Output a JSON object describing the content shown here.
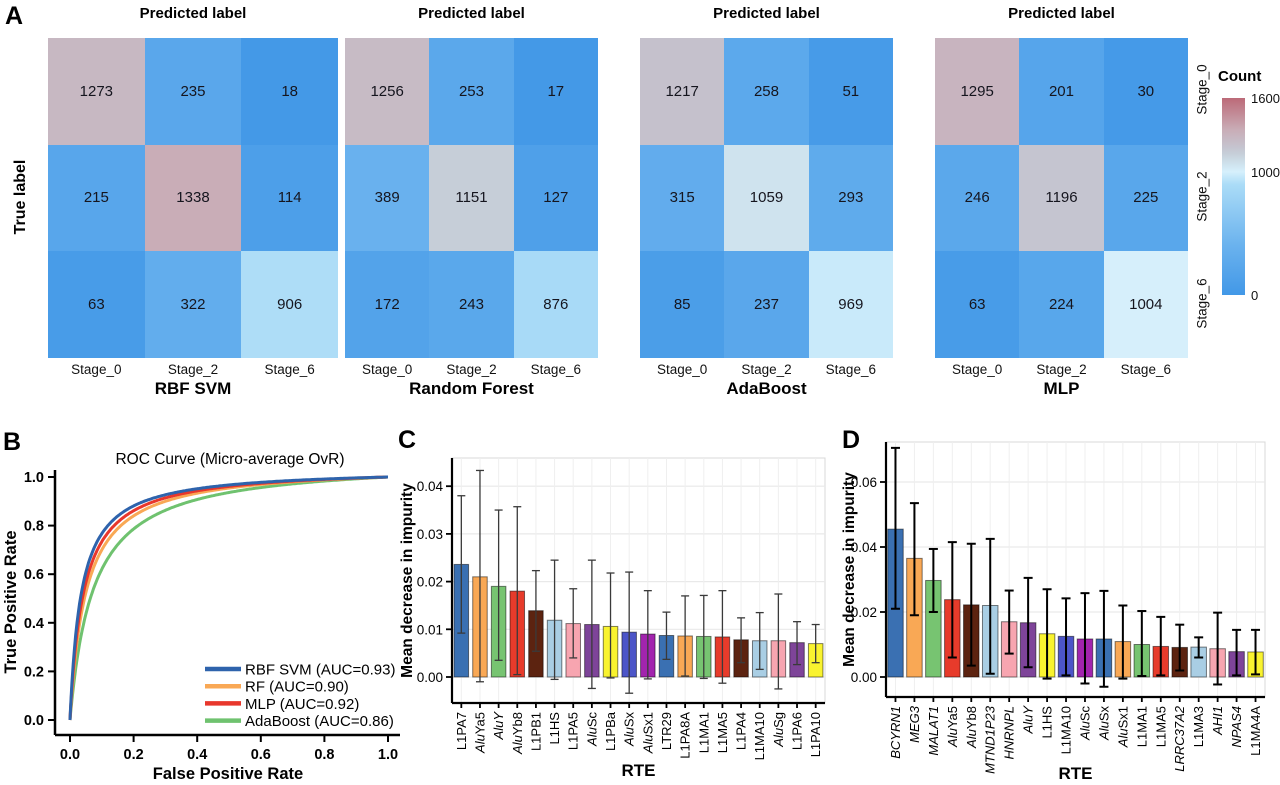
{
  "panels": {
    "A": {
      "label": "A"
    },
    "B": {
      "label": "B"
    },
    "C": {
      "label": "C"
    },
    "D": {
      "label": "D"
    }
  },
  "palette": [
    "#3A70B2",
    "#F9A855",
    "#77C471",
    "#E73B2B",
    "#5C2310",
    "#A9CEE4",
    "#F7A5B0",
    "#7E4499",
    "#F9F32F",
    "#4C55C8",
    "#A224AE"
  ],
  "chart_data": [
    {
      "panel": "A",
      "type": "heatmap",
      "title_each": "Predicted label",
      "ylabel": "True label",
      "row_labels": [
        "Stage_0",
        "Stage_2",
        "Stage_6"
      ],
      "col_labels": [
        "Stage_0",
        "Stage_2",
        "Stage_6"
      ],
      "colorbar": {
        "title": "Count",
        "min": 0,
        "max": 1600,
        "ticks": [
          1600,
          1000,
          0
        ],
        "stops": [
          {
            "count": 0,
            "color": "#4298E7"
          },
          {
            "count": 400,
            "color": "#6AB2EE"
          },
          {
            "count": 900,
            "color": "#ABDCF7"
          },
          {
            "count": 1000,
            "color": "#D6F0FC"
          },
          {
            "count": 1060,
            "color": "#CFE3EE"
          },
          {
            "count": 1150,
            "color": "#C6CED8"
          },
          {
            "count": 1200,
            "color": "#C5C4CF"
          },
          {
            "count": 1340,
            "color": "#C9ADB7"
          },
          {
            "count": 1600,
            "color": "#BC6A78"
          }
        ]
      },
      "matrices": [
        {
          "name": "RBF SVM",
          "values": [
            [
              1273,
              235,
              18
            ],
            [
              215,
              1338,
              114
            ],
            [
              63,
              322,
              906
            ]
          ]
        },
        {
          "name": "Random Forest",
          "values": [
            [
              1256,
              253,
              17
            ],
            [
              389,
              1151,
              127
            ],
            [
              172,
              243,
              876
            ]
          ]
        },
        {
          "name": "AdaBoost",
          "values": [
            [
              1217,
              258,
              51
            ],
            [
              315,
              1059,
              293
            ],
            [
              85,
              237,
              969
            ]
          ]
        },
        {
          "name": "MLP",
          "values": [
            [
              1295,
              201,
              30
            ],
            [
              246,
              1196,
              225
            ],
            [
              63,
              224,
              1004
            ]
          ]
        }
      ]
    },
    {
      "panel": "B",
      "type": "line",
      "title": "ROC Curve (Micro-average OvR)",
      "xlabel": "False Positive Rate",
      "ylabel": "True Positive Rate",
      "xticks": [
        0.0,
        0.2,
        0.4,
        0.6,
        0.8,
        1.0
      ],
      "yticks": [
        0.0,
        0.2,
        0.4,
        0.6,
        0.8,
        1.0
      ],
      "xlim": [
        0,
        1
      ],
      "ylim": [
        0,
        1
      ],
      "grid": false,
      "legend_position": "lower right",
      "series": [
        {
          "name": "RBF SVM (AUC=0.93)",
          "auc": 0.93,
          "color": "#2E63AC",
          "shape_k": 0.035
        },
        {
          "name": "RF (AUC=0.90)",
          "auc": 0.9,
          "color": "#F9A855",
          "shape_k": 0.05
        },
        {
          "name": "MLP (AUC=0.92)",
          "auc": 0.92,
          "color": "#E8372C",
          "shape_k": 0.042
        },
        {
          "name": "AdaBoost (AUC=0.86)",
          "auc": 0.86,
          "color": "#6FC26F",
          "shape_k": 0.073
        }
      ]
    },
    {
      "panel": "C",
      "type": "bar",
      "xlabel": "RTE",
      "ylabel": "Mean decrease in impurity",
      "yticks": [
        0.0,
        0.01,
        0.02,
        0.03,
        0.04
      ],
      "ylim": [
        -0.0054,
        0.0452
      ],
      "grid": true,
      "error_color": "#3a3a3a",
      "bars": [
        {
          "label": "L1PA7",
          "value": 0.0236,
          "err_lo": 0.0092,
          "err_hi": 0.038,
          "italic": "none"
        },
        {
          "label": "AluYa5",
          "value": 0.021,
          "err_lo": -0.001,
          "err_hi": 0.0433,
          "italic": "prefix"
        },
        {
          "label": "AluY",
          "value": 0.019,
          "err_lo": 0.0035,
          "err_hi": 0.035,
          "italic": "full"
        },
        {
          "label": "AluYb8",
          "value": 0.018,
          "err_lo": 0.0005,
          "err_hi": 0.0357,
          "italic": "prefix"
        },
        {
          "label": "L1PB1",
          "value": 0.0139,
          "err_lo": 0.0054,
          "err_hi": 0.0223,
          "italic": "none"
        },
        {
          "label": "L1HS",
          "value": 0.0119,
          "err_lo": -0.0005,
          "err_hi": 0.0245,
          "italic": "none"
        },
        {
          "label": "L1PA5",
          "value": 0.0112,
          "err_lo": 0.004,
          "err_hi": 0.0185,
          "italic": "none"
        },
        {
          "label": "AluSc",
          "value": 0.011,
          "err_lo": -0.0024,
          "err_hi": 0.0245,
          "italic": "prefix"
        },
        {
          "label": "L1PBa",
          "value": 0.0106,
          "err_lo": -0.0002,
          "err_hi": 0.0218,
          "italic": "none"
        },
        {
          "label": "AluSx",
          "value": 0.0094,
          "err_lo": -0.0034,
          "err_hi": 0.022,
          "italic": "prefix"
        },
        {
          "label": "AluSx1",
          "value": 0.009,
          "err_lo": -0.0004,
          "err_hi": 0.0181,
          "italic": "prefix"
        },
        {
          "label": "LTR29",
          "value": 0.0087,
          "err_lo": 0.0037,
          "err_hi": 0.0136,
          "italic": "none"
        },
        {
          "label": "L1PA8A",
          "value": 0.0086,
          "err_lo": 0.0002,
          "err_hi": 0.017,
          "italic": "none"
        },
        {
          "label": "L1MA1",
          "value": 0.0085,
          "err_lo": -0.0003,
          "err_hi": 0.0171,
          "italic": "none"
        },
        {
          "label": "L1MA5",
          "value": 0.0084,
          "err_lo": -0.0013,
          "err_hi": 0.0181,
          "italic": "none"
        },
        {
          "label": "L1PA4",
          "value": 0.0078,
          "err_lo": 0.003,
          "err_hi": 0.0124,
          "italic": "none"
        },
        {
          "label": "L1MA10",
          "value": 0.0076,
          "err_lo": 0.0016,
          "err_hi": 0.0135,
          "italic": "none"
        },
        {
          "label": "AluSg",
          "value": 0.0076,
          "err_lo": -0.0025,
          "err_hi": 0.0174,
          "italic": "prefix"
        },
        {
          "label": "L1PA6",
          "value": 0.0072,
          "err_lo": 0.0026,
          "err_hi": 0.0116,
          "italic": "none"
        },
        {
          "label": "L1PA10",
          "value": 0.007,
          "err_lo": 0.003,
          "err_hi": 0.011,
          "italic": "none"
        }
      ]
    },
    {
      "panel": "D",
      "type": "bar",
      "xlabel": "RTE",
      "ylabel": "Mean decrease in impurity",
      "yticks": [
        0.0,
        0.02,
        0.04,
        0.06
      ],
      "ylim": [
        -0.0048,
        0.0723
      ],
      "grid": true,
      "error_color": "#000000",
      "bars": [
        {
          "label": "BCYRN1",
          "value": 0.0455,
          "err_lo": 0.021,
          "err_hi": 0.0705,
          "italic": "full"
        },
        {
          "label": "MEG3",
          "value": 0.0365,
          "err_lo": 0.019,
          "err_hi": 0.0535,
          "italic": "full"
        },
        {
          "label": "MALAT1",
          "value": 0.0297,
          "err_lo": 0.02,
          "err_hi": 0.0394,
          "italic": "full"
        },
        {
          "label": "AluYa5",
          "value": 0.0238,
          "err_lo": 0.006,
          "err_hi": 0.0415,
          "italic": "prefix"
        },
        {
          "label": "AluYb8",
          "value": 0.0222,
          "err_lo": 0.0035,
          "err_hi": 0.041,
          "italic": "prefix"
        },
        {
          "label": "MTND1P23",
          "value": 0.022,
          "err_lo": 0.001,
          "err_hi": 0.0425,
          "italic": "full"
        },
        {
          "label": "HNRNPL",
          "value": 0.017,
          "err_lo": 0.0072,
          "err_hi": 0.0266,
          "italic": "full"
        },
        {
          "label": "AluY",
          "value": 0.0167,
          "err_lo": 0.003,
          "err_hi": 0.0305,
          "italic": "full"
        },
        {
          "label": "L1HS",
          "value": 0.0133,
          "err_lo": -0.0005,
          "err_hi": 0.027,
          "italic": "none"
        },
        {
          "label": "L1MA10",
          "value": 0.0125,
          "err_lo": 0.0005,
          "err_hi": 0.0242,
          "italic": "none"
        },
        {
          "label": "AluSc",
          "value": 0.0117,
          "err_lo": -0.002,
          "err_hi": 0.0258,
          "italic": "prefix"
        },
        {
          "label": "AluSx",
          "value": 0.0117,
          "err_lo": -0.003,
          "err_hi": 0.0265,
          "italic": "prefix"
        },
        {
          "label": "AluSx1",
          "value": 0.0109,
          "err_lo": -0.0005,
          "err_hi": 0.022,
          "italic": "prefix"
        },
        {
          "label": "L1MA1",
          "value": 0.01,
          "err_lo": 0.0003,
          "err_hi": 0.0203,
          "italic": "none"
        },
        {
          "label": "L1MA5",
          "value": 0.0094,
          "err_lo": 0.0005,
          "err_hi": 0.0185,
          "italic": "none"
        },
        {
          "label": "LRRC37A2",
          "value": 0.0091,
          "err_lo": 0.002,
          "err_hi": 0.0161,
          "italic": "full"
        },
        {
          "label": "L1MA3",
          "value": 0.0092,
          "err_lo": 0.006,
          "err_hi": 0.0122,
          "italic": "none"
        },
        {
          "label": "AHI1",
          "value": 0.0087,
          "err_lo": -0.0023,
          "err_hi": 0.0198,
          "italic": "full"
        },
        {
          "label": "NPAS4",
          "value": 0.0078,
          "err_lo": 0.0005,
          "err_hi": 0.0145,
          "italic": "full"
        },
        {
          "label": "L1MA4A",
          "value": 0.0077,
          "err_lo": 0.0008,
          "err_hi": 0.0145,
          "italic": "none"
        }
      ]
    }
  ]
}
